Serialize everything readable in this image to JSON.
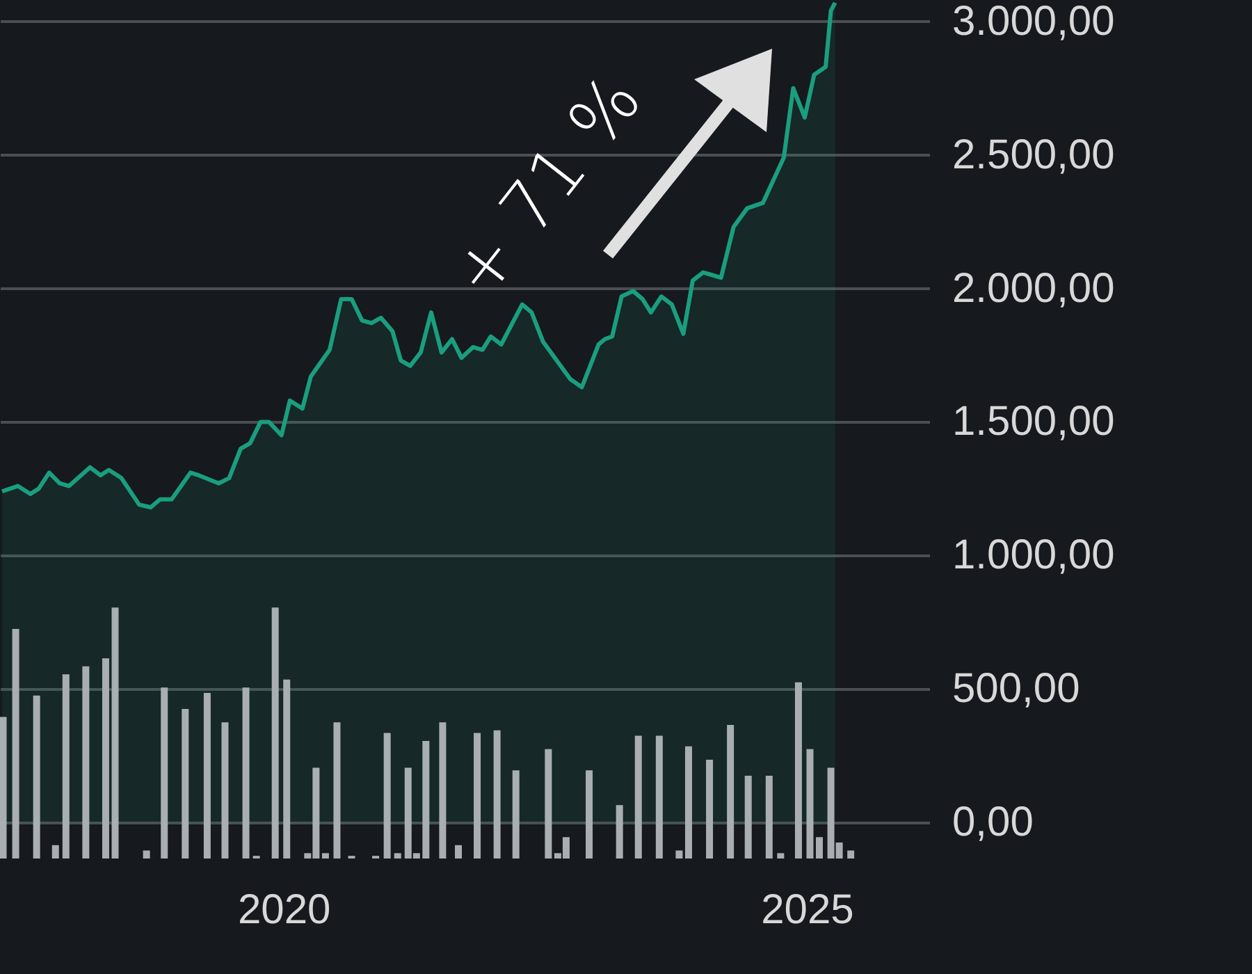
{
  "chart_data": {
    "type": "area",
    "annotations": [
      "+ 71 %"
    ],
    "xlim": [
      2017.29,
      2026.17
    ],
    "xticks": [
      2020,
      2025
    ],
    "ylim": [
      -135,
      3080
    ],
    "yticks": [
      {
        "value": 0,
        "label": "0,00"
      },
      {
        "value": 500,
        "label": "500,00"
      },
      {
        "value": 1000,
        "label": "1.000,00"
      },
      {
        "value": 1500,
        "label": "1.500,00"
      },
      {
        "value": 2000,
        "label": "2.000,00"
      },
      {
        "value": 2500,
        "label": "2.500,00"
      },
      {
        "value": 3000,
        "label": "3.000,00"
      }
    ],
    "grid": "y",
    "series": [
      {
        "color": "#1a9e7f",
        "x": [
          2017.31,
          2017.46,
          2017.58,
          2017.66,
          2017.76,
          2017.86,
          2017.95,
          2018.15,
          2018.25,
          2018.33,
          2018.45,
          2018.62,
          2018.73,
          2018.82,
          2018.93,
          2019.11,
          2019.19,
          2019.38,
          2019.48,
          2019.59,
          2019.68,
          2019.78,
          2019.86,
          2019.98,
          2020.06,
          2020.18,
          2020.26,
          2020.44,
          2020.55,
          2020.65,
          2020.75,
          2020.84,
          2020.93,
          2021.04,
          2021.12,
          2021.21,
          2021.31,
          2021.41,
          2021.51,
          2021.61,
          2021.7,
          2021.81,
          2021.9,
          2021.98,
          2022.08,
          2022.28,
          2022.37,
          2022.48,
          2022.74,
          2022.85,
          2023.01,
          2023.07,
          2023.14,
          2023.23,
          2023.34,
          2023.43,
          2023.51,
          2023.61,
          2023.71,
          2023.82,
          2023.91,
          2024.01,
          2024.18,
          2024.3,
          2024.43,
          2024.58,
          2024.78,
          2024.87,
          2024.98,
          2025.07,
          2025.18,
          2025.23,
          2025.27
        ],
        "values": [
          1240,
          1260,
          1230,
          1250,
          1310,
          1270,
          1260,
          1330,
          1300,
          1320,
          1290,
          1190,
          1180,
          1210,
          1210,
          1310,
          1300,
          1270,
          1290,
          1400,
          1420,
          1500,
          1500,
          1450,
          1580,
          1550,
          1670,
          1770,
          1960,
          1960,
          1880,
          1870,
          1890,
          1840,
          1730,
          1710,
          1760,
          1910,
          1760,
          1810,
          1740,
          1780,
          1770,
          1820,
          1790,
          1940,
          1910,
          1800,
          1660,
          1630,
          1790,
          1810,
          1820,
          1970,
          1990,
          1960,
          1910,
          1970,
          1940,
          1830,
          2030,
          2060,
          2040,
          2230,
          2300,
          2320,
          2490,
          2750,
          2640,
          2800,
          2830,
          3040,
          3070
        ]
      },
      {
        "type": "bar",
        "color": "#a9aeb2",
        "x": [
          2017.32,
          2017.44,
          2017.64,
          2017.82,
          2017.92,
          2018.11,
          2018.3,
          2018.39,
          2018.69,
          2018.86,
          2019.06,
          2019.27,
          2019.44,
          2019.64,
          2019.74,
          2019.92,
          2020.03,
          2020.23,
          2020.31,
          2020.4,
          2020.51,
          2020.65,
          2020.88,
          2020.99,
          2021.09,
          2021.19,
          2021.27,
          2021.36,
          2021.52,
          2021.67,
          2021.85,
          2022.04,
          2022.22,
          2022.53,
          2022.62,
          2022.7,
          2022.92,
          2023.21,
          2023.39,
          2023.59,
          2023.78,
          2023.87,
          2024.07,
          2024.27,
          2024.44,
          2024.64,
          2024.75,
          2024.92,
          2025.03,
          2025.12,
          2025.23,
          2025.31,
          2025.42
        ],
        "values": [
          530,
          860,
          610,
          50,
          690,
          720,
          750,
          940,
          30,
          640,
          560,
          620,
          510,
          640,
          10,
          940,
          670,
          20,
          340,
          20,
          510,
          10,
          10,
          470,
          20,
          340,
          20,
          440,
          510,
          50,
          470,
          480,
          330,
          410,
          20,
          80,
          330,
          200,
          460,
          460,
          30,
          420,
          370,
          500,
          310,
          310,
          20,
          660,
          410,
          80,
          340,
          60,
          30
        ],
        "base": [
          -135,
          -135,
          -135,
          -135,
          -135,
          -135,
          -135,
          -135,
          -135,
          -135,
          -135,
          -135,
          -135,
          -135,
          -135,
          -135,
          -135,
          -135,
          -135,
          -135,
          -135,
          -135,
          -135,
          -135,
          -135,
          -135,
          -135,
          -135,
          -135,
          -135,
          -135,
          -135,
          -135,
          -135,
          -135,
          -135,
          -135,
          -135,
          -135,
          -135,
          -135,
          -135,
          -135,
          -135,
          -135,
          -135,
          -135,
          -135,
          -135,
          -135,
          -135,
          -135,
          -135
        ]
      }
    ]
  }
}
